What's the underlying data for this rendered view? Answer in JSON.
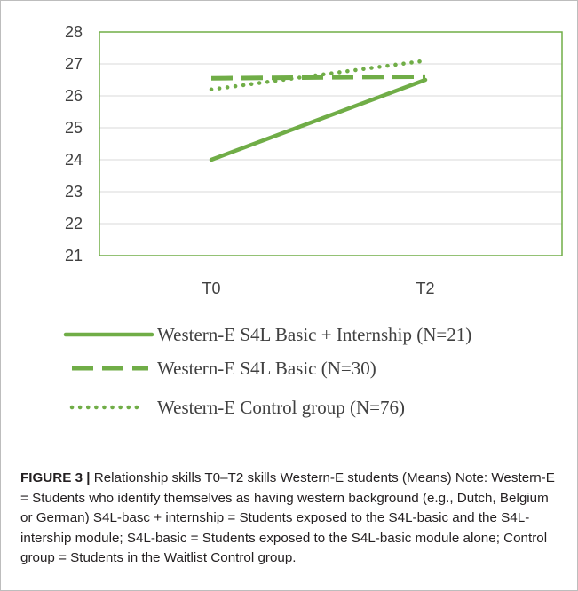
{
  "chart_data": {
    "type": "line",
    "categories": [
      "T0",
      "T2"
    ],
    "series": [
      {
        "name": "Western-E S4L Basic + Internship (N=21)",
        "values": [
          24.0,
          26.5
        ],
        "style": "solid",
        "color": "#70ad47"
      },
      {
        "name": "Western-E S4L Basic (N=30)",
        "values": [
          26.55,
          26.6
        ],
        "style": "dashed",
        "color": "#70ad47"
      },
      {
        "name": "Western-E Control group (N=76)",
        "values": [
          26.2,
          27.1
        ],
        "style": "dotted",
        "color": "#70ad47"
      }
    ],
    "ylim": [
      21,
      28
    ],
    "yticks": [
      21,
      22,
      23,
      24,
      25,
      26,
      27,
      28
    ],
    "grid": true,
    "legend": "bottom",
    "plot_border_color": "#70ad47",
    "gridline_color": "#d9d9d9"
  },
  "caption": {
    "label": "FIGURE 3 |",
    "text": " Relationship skills T0–T2 skills Western-E students (Means) Note: Western-E = Students who identify themselves as having western background (e.g., Dutch, Belgium or German) S4L-basc + internship = Students exposed to the S4L-basic and the S4L-intership module; S4L-basic = Students exposed to the S4L-basic module alone; Control group = Students in the Waitlist Control group."
  }
}
